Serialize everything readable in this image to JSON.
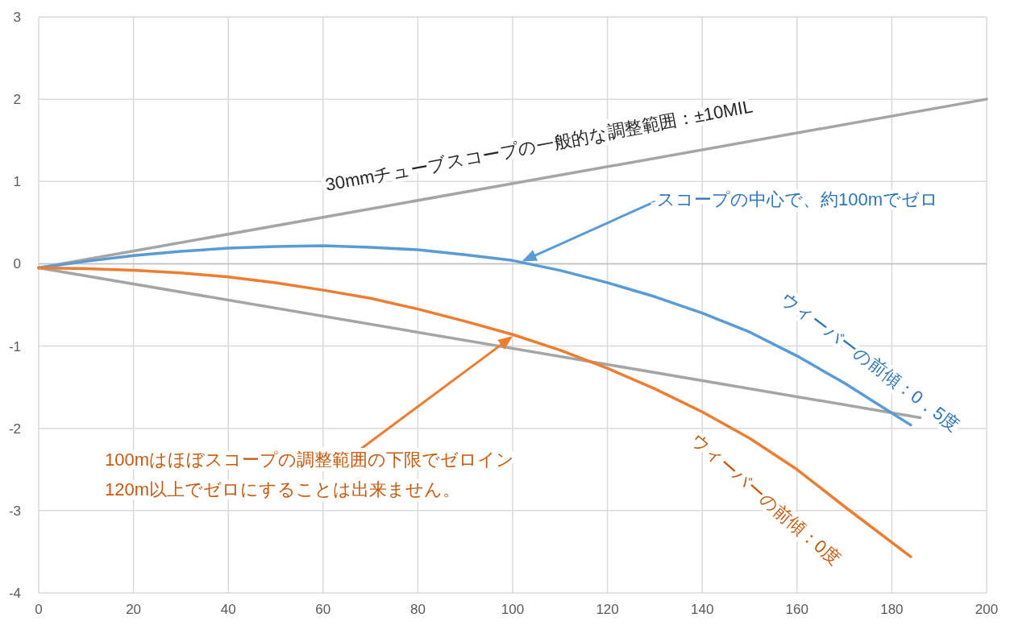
{
  "chart_data": {
    "type": "line",
    "xlim": [
      0,
      200
    ],
    "ylim": [
      -4,
      3
    ],
    "xticks": [
      0,
      20,
      40,
      60,
      80,
      100,
      120,
      140,
      160,
      180,
      200
    ],
    "yticks": [
      -4,
      -3,
      -2,
      -1,
      0,
      1,
      2,
      3
    ],
    "grid": true,
    "series": [
      {
        "color": "#a5a5a5",
        "x": [
          0,
          200
        ],
        "values": [
          -0.05,
          2.0
        ]
      },
      {
        "color": "#a5a5a5",
        "x": [
          0,
          186
        ],
        "values": [
          -0.05,
          -1.87
        ]
      },
      {
        "name": "ウィーバーの前傾：0．5度",
        "color": "#5b9bd5",
        "x": [
          0,
          10,
          20,
          30,
          40,
          50,
          60,
          70,
          80,
          90,
          100,
          110,
          120,
          130,
          140,
          150,
          160,
          170,
          184
        ],
        "values": [
          -0.05,
          0.03,
          0.1,
          0.15,
          0.19,
          0.21,
          0.22,
          0.2,
          0.17,
          0.11,
          0.04,
          -0.08,
          -0.23,
          -0.4,
          -0.6,
          -0.83,
          -1.12,
          -1.45,
          -1.96
        ]
      },
      {
        "name": "ウィーバーの前傾：0度",
        "color": "#ed7d31",
        "x": [
          0,
          10,
          20,
          30,
          40,
          50,
          60,
          70,
          80,
          90,
          100,
          110,
          120,
          130,
          140,
          150,
          160,
          170,
          184
        ],
        "values": [
          -0.05,
          -0.06,
          -0.08,
          -0.11,
          -0.16,
          -0.23,
          -0.32,
          -0.42,
          -0.55,
          -0.7,
          -0.86,
          -1.05,
          -1.27,
          -1.52,
          -1.8,
          -2.12,
          -2.5,
          -2.95,
          -3.56
        ]
      }
    ],
    "annotations": [
      {
        "text": "30mmチューブスコープの一般的な調整範囲：±10MIL"
      },
      {
        "text": "スコープの中心で、約100mでゼロ",
        "x": 102,
        "y": 0.03
      },
      {
        "text": "100mはほぼスコープの調整範囲の下限でゼロイン\n120m以上でゼロにすることは出来ません。",
        "x": 100,
        "y": -0.88
      }
    ]
  }
}
